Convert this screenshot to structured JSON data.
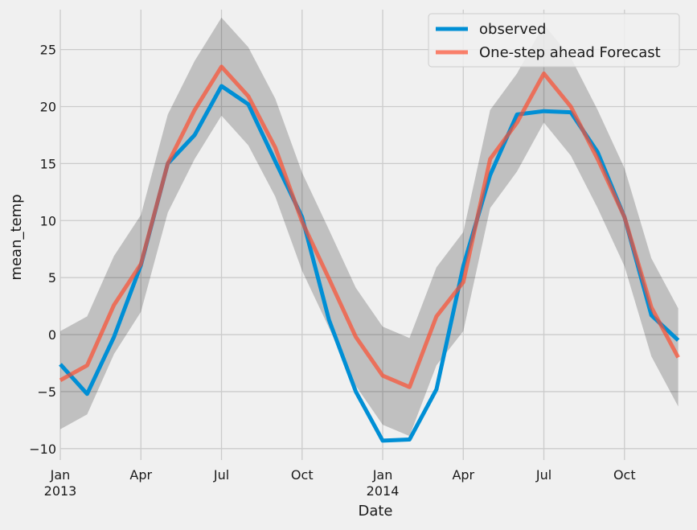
{
  "chart_data": {
    "type": "line",
    "title": "",
    "xlabel": "Date",
    "ylabel": "mean_temp",
    "ylim": [
      -11,
      28.5
    ],
    "yticks": [
      -10,
      -5,
      0,
      5,
      10,
      15,
      20,
      25
    ],
    "ytick_labels": [
      "−10",
      "−5",
      "0",
      "5",
      "10",
      "15",
      "20",
      "25"
    ],
    "x_months": [
      "Jan 2013",
      "Feb 2013",
      "Mar 2013",
      "Apr 2013",
      "May 2013",
      "Jun 2013",
      "Jul 2013",
      "Aug 2013",
      "Sep 2013",
      "Oct 2013",
      "Nov 2013",
      "Dec 2013",
      "Jan 2014",
      "Feb 2014",
      "Mar 2014",
      "Apr 2014",
      "May 2014",
      "Jun 2014",
      "Jul 2014",
      "Aug 2014",
      "Sep 2014",
      "Oct 2014",
      "Nov 2014",
      "Dec 2014"
    ],
    "xticks": [
      {
        "index": 0,
        "label": "Jan",
        "sublabel": "2013"
      },
      {
        "index": 3,
        "label": "Apr",
        "sublabel": ""
      },
      {
        "index": 6,
        "label": "Jul",
        "sublabel": ""
      },
      {
        "index": 9,
        "label": "Oct",
        "sublabel": ""
      },
      {
        "index": 12,
        "label": "Jan",
        "sublabel": "2014"
      },
      {
        "index": 15,
        "label": "Apr",
        "sublabel": ""
      },
      {
        "index": 18,
        "label": "Jul",
        "sublabel": ""
      },
      {
        "index": 21,
        "label": "Oct",
        "sublabel": ""
      }
    ],
    "xlim": [
      0,
      23.4
    ],
    "grid": true,
    "legend_position": "top-right",
    "series": [
      {
        "name": "observed",
        "color": "#008fd5",
        "values": [
          -2.6,
          -5.2,
          -0.2,
          6.1,
          15.0,
          17.5,
          21.8,
          20.2,
          15.2,
          10.3,
          1.3,
          -5.0,
          -9.3,
          -9.2,
          -4.8,
          6.0,
          14.0,
          19.3,
          19.6,
          19.5,
          16.0,
          10.3,
          1.7,
          -0.5
        ]
      },
      {
        "name": "One-step ahead Forecast",
        "color": "#fc4f30",
        "values": [
          -4.0,
          -2.7,
          2.6,
          6.2,
          15.0,
          19.7,
          23.5,
          20.9,
          16.4,
          9.9,
          4.9,
          -0.2,
          -3.6,
          -4.6,
          1.6,
          4.6,
          15.4,
          18.6,
          22.9,
          20.0,
          15.4,
          10.3,
          2.4,
          -2.0
        ]
      }
    ],
    "confidence_interval": {
      "lower": [
        -8.3,
        -7.0,
        -1.7,
        2.0,
        10.7,
        15.4,
        19.2,
        16.6,
        12.1,
        5.6,
        0.6,
        -4.5,
        -7.9,
        -8.9,
        -2.7,
        0.3,
        11.1,
        14.3,
        18.6,
        15.7,
        11.1,
        6.0,
        -1.9,
        -6.3
      ],
      "upper": [
        0.3,
        1.6,
        6.9,
        10.5,
        19.3,
        24.0,
        27.8,
        25.2,
        20.7,
        14.2,
        9.2,
        4.1,
        0.7,
        -0.3,
        5.9,
        9.0,
        19.7,
        22.9,
        27.2,
        24.3,
        19.7,
        14.6,
        6.7,
        2.3
      ]
    }
  }
}
